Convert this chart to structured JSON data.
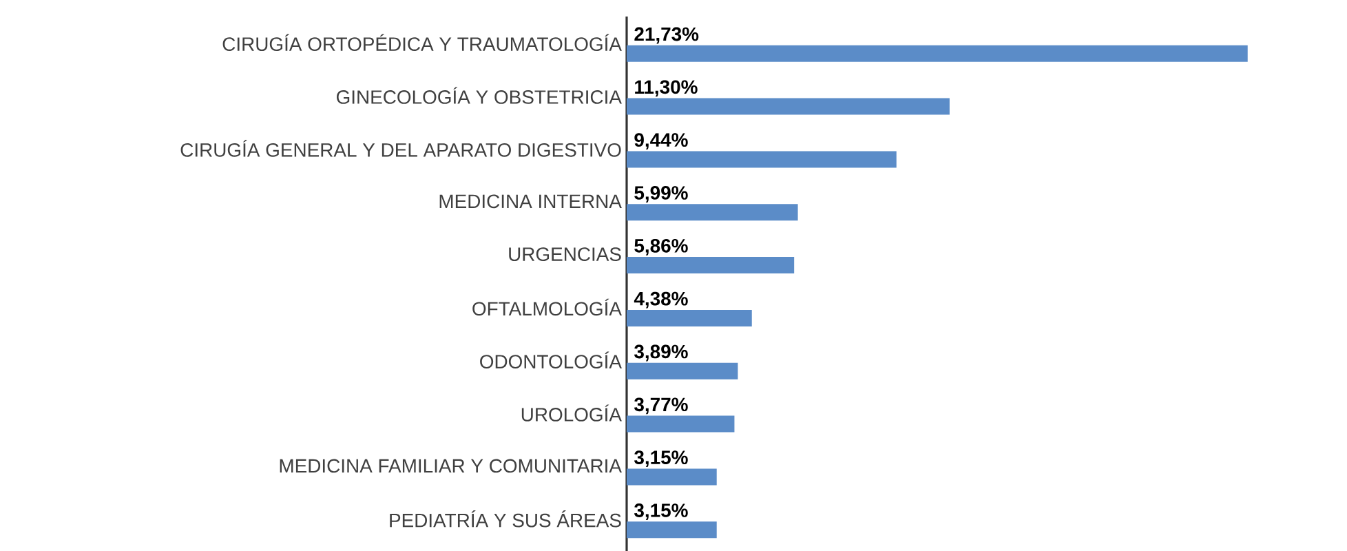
{
  "chart_data": {
    "type": "bar",
    "orientation": "horizontal",
    "categories": [
      "CIRUGÍA ORTOPÉDICA Y TRAUMATOLOGÍA",
      "GINECOLOGÍA Y OBSTETRICIA",
      "CIRUGÍA GENERAL Y DEL APARATO DIGESTIVO",
      "MEDICINA INTERNA",
      "URGENCIAS",
      "OFTALMOLOGÍA",
      "ODONTOLOGÍA",
      "UROLOGÍA",
      "MEDICINA FAMILIAR Y COMUNITARIA",
      "PEDIATRÍA Y SUS ÁREAS"
    ],
    "values": [
      21.73,
      11.3,
      9.44,
      5.99,
      5.86,
      4.38,
      3.89,
      3.77,
      3.15,
      3.15
    ],
    "value_labels": [
      "21,73%",
      "11,30%",
      "9,44%",
      "5,99%",
      "5,86%",
      "4,38%",
      "3,89%",
      "3,77%",
      "3,15%",
      "3,15%"
    ],
    "color": "#5b8cc8",
    "tick_labels": "y"
  }
}
